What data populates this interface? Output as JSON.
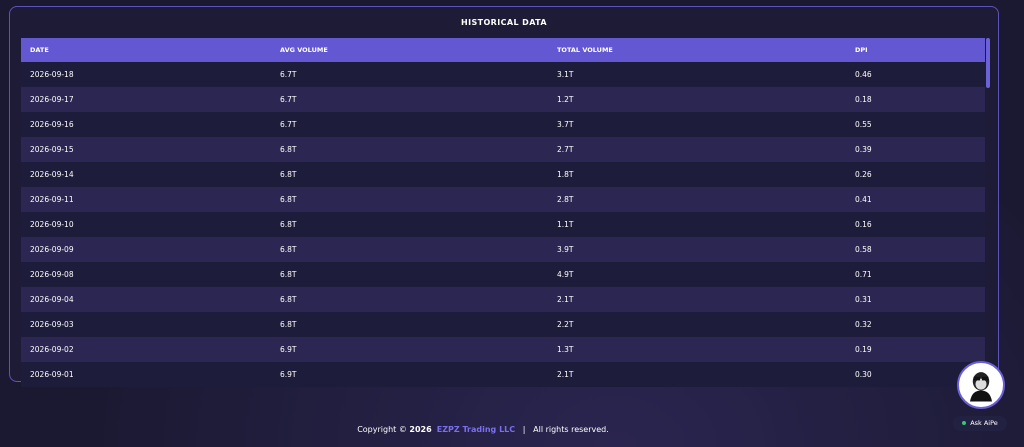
{
  "header": {
    "title": "HISTORICAL DATA"
  },
  "table": {
    "columns": [
      "DATE",
      "AVG VOLUME",
      "TOTAL VOLUME",
      "DPI"
    ],
    "rows": [
      [
        "2026-09-18",
        "6.7T",
        "3.1T",
        "0.46"
      ],
      [
        "2026-09-17",
        "6.7T",
        "1.2T",
        "0.18"
      ],
      [
        "2026-09-16",
        "6.7T",
        "3.7T",
        "0.55"
      ],
      [
        "2026-09-15",
        "6.8T",
        "2.7T",
        "0.39"
      ],
      [
        "2026-09-14",
        "6.8T",
        "1.8T",
        "0.26"
      ],
      [
        "2026-09-11",
        "6.8T",
        "2.8T",
        "0.41"
      ],
      [
        "2026-09-10",
        "6.8T",
        "1.1T",
        "0.16"
      ],
      [
        "2026-09-09",
        "6.8T",
        "3.9T",
        "0.58"
      ],
      [
        "2026-09-08",
        "6.8T",
        "4.9T",
        "0.71"
      ],
      [
        "2026-09-04",
        "6.8T",
        "2.1T",
        "0.31"
      ],
      [
        "2026-09-03",
        "6.8T",
        "2.2T",
        "0.32"
      ],
      [
        "2026-09-02",
        "6.9T",
        "1.3T",
        "0.19"
      ],
      [
        "2026-09-01",
        "6.9T",
        "2.1T",
        "0.30"
      ]
    ]
  },
  "footer": {
    "copyright": "Copyright ©",
    "year": "2026",
    "company": "EZPZ Trading LLC",
    "separator": "|",
    "rights": "All rights reserved."
  },
  "assistant": {
    "label": "Ask AiPe"
  }
}
